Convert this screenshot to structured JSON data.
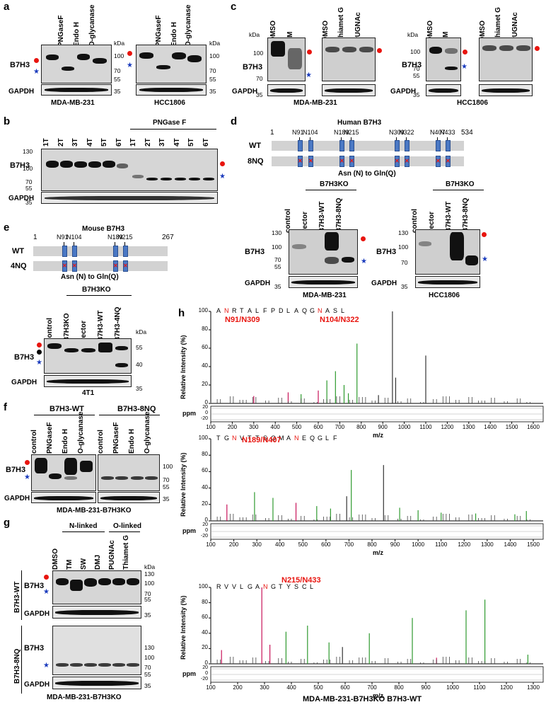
{
  "panel_labels": [
    "a",
    "b",
    "c",
    "d",
    "e",
    "f",
    "g",
    "h"
  ],
  "common": {
    "b7h3": "B7H3",
    "gapdh": "GAPDH",
    "kda": "kDa",
    "b7h3ko": "B7H3KO"
  },
  "panel_a": {
    "lanes": [
      "-",
      "PNGaseF",
      "Endo H",
      "O-glycanase"
    ],
    "cells": [
      "MDA-MB-231",
      "HCC1806"
    ],
    "kda": [
      "100",
      "70",
      "55",
      "35"
    ]
  },
  "panel_b": {
    "lanes": [
      "1T",
      "2T",
      "3T",
      "4T",
      "5T",
      "6T",
      "1T",
      "2T",
      "3T",
      "4T",
      "5T",
      "6T"
    ],
    "header": "PNGase F",
    "kda": [
      "130",
      "100",
      "70",
      "55",
      "35"
    ]
  },
  "panel_c": {
    "lanes_tm": [
      "DMSO",
      "TM"
    ],
    "lanes_o": [
      "DMSO",
      "Thiamet G",
      "PUGNAc"
    ],
    "kda": [
      "100",
      "70",
      "55",
      "35"
    ],
    "cells": [
      "MDA-MB-231",
      "HCC1806"
    ]
  },
  "panel_d": {
    "title": "Human B7H3",
    "start": "1",
    "end": "534",
    "sites": [
      "N91",
      "N104",
      "N189",
      "N215",
      "N309",
      "N322",
      "N407",
      "N433"
    ],
    "rows": [
      "WT",
      "8NQ"
    ],
    "note": "Asn (N) to  Gln(Q)",
    "lanes": [
      "control",
      "vector",
      "B7H3-WT",
      "B7H3-8NQ"
    ],
    "kda": [
      "130",
      "100",
      "70",
      "55",
      "35"
    ],
    "cells": [
      "MDA-MB-231",
      "HCC1806"
    ]
  },
  "panel_e": {
    "title": "Mouse  B7H3",
    "start": "1",
    "end": "267",
    "sites": [
      "N91",
      "N104",
      "N189",
      "N215"
    ],
    "rows": [
      "WT",
      "4NQ"
    ],
    "note": "Asn (N) to  Gln(Q)",
    "lanes": [
      "control",
      "B7H3KO",
      "vector",
      "B7H3-WT",
      "B7H3-4NQ"
    ],
    "kda": [
      "55",
      "40",
      "35"
    ],
    "cell": "4T1"
  },
  "panel_f": {
    "groups": [
      "B7H3-WT",
      "B7H3-8NQ"
    ],
    "lanes": [
      "control",
      "PNGaseF",
      "Endo H",
      "O-glycanase",
      "control",
      "PNGaseF",
      "Endo H",
      "O-glycanase"
    ],
    "kda": [
      "100",
      "70",
      "55",
      "35"
    ],
    "cell": "MDA-MB-231-B7H3KO"
  },
  "panel_g": {
    "groups": [
      "N-linked",
      "O-linked"
    ],
    "lanes": [
      "DMSO",
      "TM",
      "SW",
      "DMJ",
      "PUGNAc",
      "Thiamet G"
    ],
    "rows": [
      "B7H3-WT",
      "B7H3-8NQ"
    ],
    "kda": [
      "130",
      "100",
      "70",
      "55",
      "35"
    ],
    "cell": "MDA-MB-231-B7H3KO"
  },
  "panel_h": {
    "ylabel": "Relative Intensity (%)",
    "ppm": "ppm",
    "xlabel": "m/z",
    "footer": "MDA-MB-231-B7H3KO B7H3-WT",
    "spectra": [
      {
        "sites": [
          "N91/N309",
          "N104/N322"
        ],
        "seq": [
          "A",
          "N",
          "R",
          "T",
          "A",
          "L",
          "F",
          "P",
          "D",
          "L",
          "A",
          "Q",
          "G",
          "N",
          "A",
          "S",
          "L"
        ],
        "xticks": [
          "100",
          "200",
          "300",
          "400",
          "500",
          "600",
          "700",
          "800",
          "900",
          "1000",
          "1100",
          "1200",
          "1300",
          "1400",
          "1500",
          "1600"
        ],
        "xmin": 100,
        "xmax": 1600
      },
      {
        "sites": [
          "N189/N407"
        ],
        "seq": [
          "T",
          "G",
          "N",
          "V",
          "T",
          "T",
          "S",
          "Q",
          "M",
          "A",
          "N",
          "E",
          "Q",
          "G",
          "L",
          "F"
        ],
        "xticks": [
          "100",
          "200",
          "300",
          "400",
          "500",
          "600",
          "700",
          "800",
          "900",
          "1000",
          "1100",
          "1200",
          "1300",
          "1400",
          "1500"
        ],
        "xmin": 100,
        "xmax": 1500
      },
      {
        "sites": [
          "N215/N433"
        ],
        "seq": [
          "R",
          "V",
          "V",
          "L",
          "G",
          "A",
          "N",
          "G",
          "T",
          "Y",
          "S",
          "C",
          "L"
        ],
        "xticks": [
          "100",
          "200",
          "300",
          "400",
          "500",
          "600",
          "700",
          "800",
          "900",
          "1000",
          "1100",
          "1200",
          "1300"
        ],
        "xmin": 100,
        "xmax": 1300
      }
    ],
    "yticks": [
      "0",
      "20",
      "40",
      "60",
      "80",
      "100"
    ],
    "ppm_ticks": [
      "20",
      "0",
      "-20"
    ]
  },
  "colors": {
    "marker_red": "#e8150f",
    "marker_blue": "#1a3bbd",
    "domain": "#4a78c4",
    "b_ion": "#2e9a2e",
    "y_ion": "#c8145a"
  }
}
